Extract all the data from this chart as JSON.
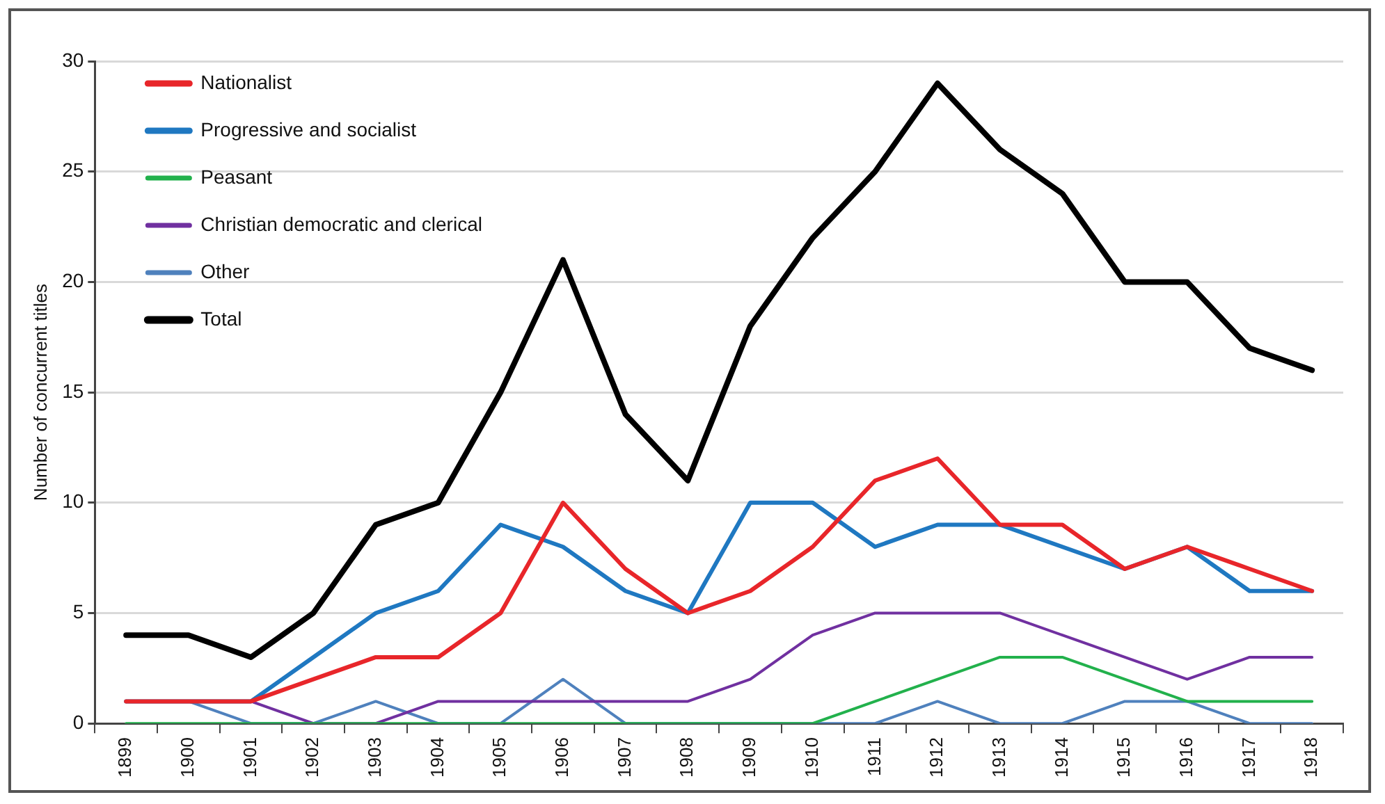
{
  "chart_data": {
    "type": "line",
    "ylabel": "Number of concurrent titles",
    "categories": [
      "1899",
      "1900",
      "1901",
      "1902",
      "1903",
      "1904",
      "1905",
      "1906",
      "1907",
      "1908",
      "1909",
      "1910",
      "1911",
      "1912",
      "1913",
      "1914",
      "1915",
      "1916",
      "1917",
      "1918"
    ],
    "series": [
      {
        "name": "Nationalist",
        "color": "#e8262a",
        "values": [
          1,
          1,
          1,
          2,
          3,
          3,
          5,
          10,
          7,
          5,
          6,
          8,
          11,
          12,
          9,
          9,
          7,
          8,
          7,
          6
        ]
      },
      {
        "name": "Progressive and socialist",
        "color": "#1f78c1",
        "values": [
          1,
          1,
          1,
          3,
          5,
          6,
          9,
          8,
          6,
          5,
          10,
          10,
          8,
          9,
          9,
          8,
          7,
          8,
          6,
          6
        ]
      },
      {
        "name": "Peasant",
        "color": "#22b14c",
        "values": [
          0,
          0,
          0,
          0,
          0,
          0,
          0,
          0,
          0,
          0,
          0,
          0,
          1,
          2,
          3,
          3,
          2,
          1,
          1,
          1
        ]
      },
      {
        "name": "Christian democratic and clerical",
        "color": "#7030a0",
        "values": [
          1,
          1,
          1,
          0,
          0,
          1,
          1,
          1,
          1,
          1,
          2,
          4,
          5,
          5,
          5,
          4,
          3,
          2,
          3,
          3
        ]
      },
      {
        "name": "Other",
        "color": "#4f81bd",
        "values": [
          1,
          1,
          0,
          0,
          1,
          0,
          0,
          2,
          0,
          0,
          0,
          0,
          0,
          1,
          0,
          0,
          1,
          1,
          0,
          0
        ]
      },
      {
        "name": "Total",
        "color": "#000000",
        "values": [
          4,
          4,
          3,
          5,
          9,
          10,
          15,
          21,
          14,
          11,
          18,
          22,
          25,
          29,
          26,
          24,
          20,
          20,
          17,
          16
        ]
      }
    ],
    "ylim": [
      0,
      30
    ],
    "yticks": [
      0,
      5,
      10,
      15,
      20,
      25,
      30
    ],
    "grid": "y",
    "legend": "top left",
    "marker": "none",
    "line_style": "solid"
  }
}
